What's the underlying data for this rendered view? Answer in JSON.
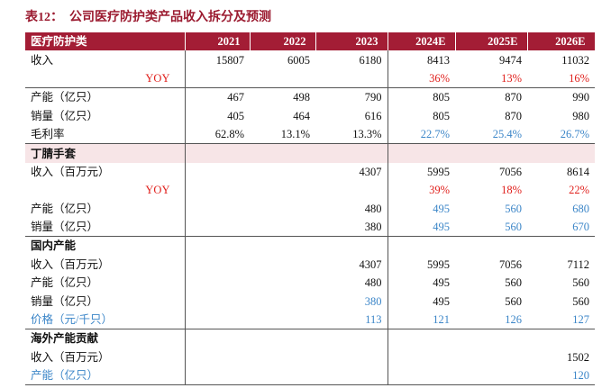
{
  "title": "表12：  公司医疗防护类产品收入拆分及预测",
  "table": {
    "header": [
      "医疗防护类",
      "2021",
      "2022",
      "2023",
      "2024E",
      "2025E",
      "2026E"
    ],
    "rows": [
      {
        "label": "收入",
        "cells": [
          "15807",
          "6005",
          "6180",
          "8413",
          "9474",
          "11032"
        ]
      },
      {
        "label": "YOY",
        "cells": [
          null,
          null,
          null,
          "36%",
          "13%",
          "16%"
        ]
      },
      {
        "label": "产能（亿只）",
        "cells": [
          "467",
          "498",
          "790",
          "805",
          "870",
          "990"
        ]
      },
      {
        "label": "销量（亿只）",
        "cells": [
          "405",
          "464",
          "616",
          "805",
          "870",
          "980"
        ]
      },
      {
        "label": "毛利率",
        "cells": [
          "62.8%",
          "13.1%",
          "13.3%",
          "22.7%",
          "25.4%",
          "26.7%"
        ]
      },
      {
        "section": "丁腈手套"
      },
      {
        "label": "收入（百万元）",
        "cells": [
          null,
          null,
          "4307",
          "5995",
          "7056",
          "8614"
        ]
      },
      {
        "label": "YOY",
        "cells": [
          null,
          null,
          null,
          "39%",
          "18%",
          "22%"
        ]
      },
      {
        "label": "产能（亿只）",
        "cells": [
          null,
          null,
          "480",
          "495",
          "560",
          "680"
        ]
      },
      {
        "label": "销量（亿只）",
        "cells": [
          null,
          null,
          "380",
          "495",
          "560",
          "670"
        ]
      },
      {
        "section": "国内产能"
      },
      {
        "label": "收入（百万元）",
        "cells": [
          null,
          null,
          "4307",
          "5995",
          "7056",
          "7112"
        ]
      },
      {
        "label": "产能（亿只）",
        "cells": [
          null,
          null,
          "480",
          "495",
          "560",
          "560"
        ]
      },
      {
        "label": "销量（亿只）",
        "cells": [
          null,
          null,
          "380",
          "495",
          "560",
          "560"
        ]
      },
      {
        "label": "价格（元/千只）",
        "cells": [
          null,
          null,
          "113",
          "121",
          "126",
          "127"
        ]
      },
      {
        "section": "海外产能贡献"
      },
      {
        "label": "收入（百万元）",
        "cells": [
          null,
          null,
          null,
          null,
          null,
          "1502"
        ]
      },
      {
        "label": "产能（亿只）",
        "cells": [
          null,
          null,
          null,
          null,
          null,
          "120"
        ]
      }
    ]
  }
}
